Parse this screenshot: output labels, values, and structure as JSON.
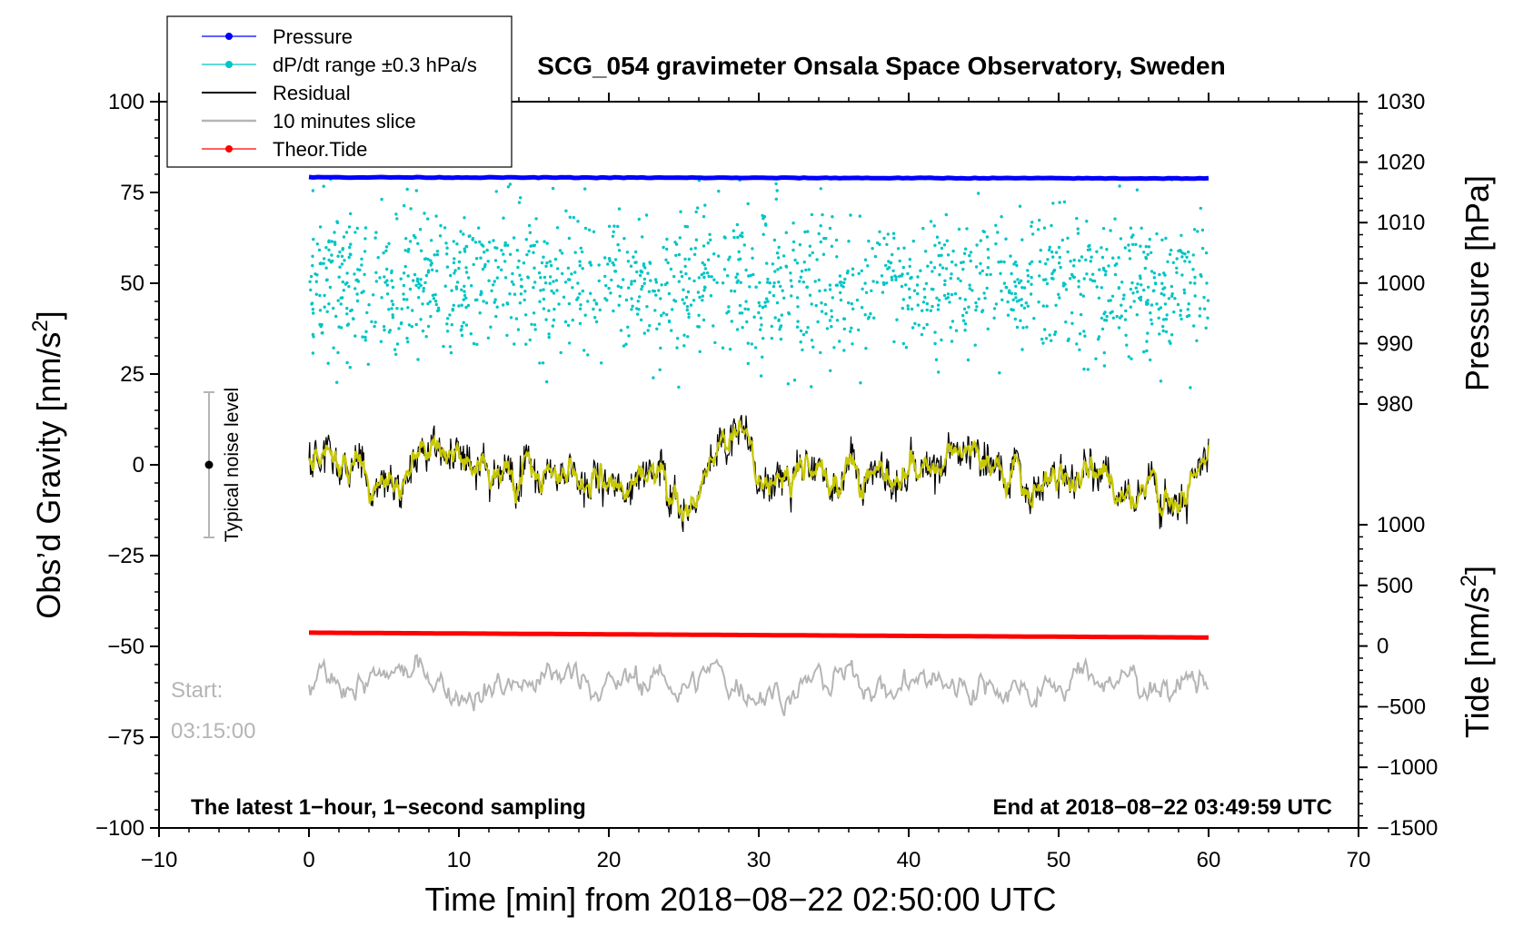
{
  "chart_data": {
    "type": "line",
    "title": "SCG_054 gravimeter Onsala Space Observatory, Sweden",
    "xlabel": "Time [min] from 2018−08−22 02:50:00 UTC",
    "ylabel": "Obs’d Gravity [nm/s",
    "ylabel_sup": "2",
    "ylabel_tail": "]",
    "y2label": "Pressure [hPa]",
    "y3label": "Tide [nm/s",
    "y3label_sup": "2",
    "y3label_tail": "]",
    "xlim": [
      -10,
      70
    ],
    "ylim": [
      -100,
      100
    ],
    "pressure_axis_range": [
      980,
      1030
    ],
    "tide_axis_range": [
      -1500,
      1000
    ],
    "x_ticks": [
      "−10",
      "0",
      "10",
      "20",
      "30",
      "40",
      "50",
      "60",
      "70"
    ],
    "y_ticks": [
      "100",
      "75",
      "50",
      "25",
      "0",
      "−25",
      "−50",
      "−75",
      "−100"
    ],
    "pressure_ticks": [
      "1030",
      "1020",
      "1010",
      "1000",
      "990",
      "980"
    ],
    "tide_ticks": [
      "1000",
      "500",
      "0",
      "−500",
      "−1000",
      "−1500"
    ],
    "series": [
      {
        "name": "Pressure",
        "color": "#0000ff",
        "style": "line+markers",
        "axis": "pressure",
        "x": [
          0,
          60
        ],
        "values": [
          1017.5,
          1017.3
        ]
      },
      {
        "name": "dP/dt range ±0.3 hPa/s",
        "color": "#00c5c5",
        "style": "scatter",
        "axis": "gravity",
        "center": 50,
        "spread": 30
      },
      {
        "name": "Residual",
        "color": "#000000",
        "style": "line",
        "axis": "gravity",
        "amplitude": 15
      },
      {
        "name": "10 minutes slice",
        "color": "#b5b5b5",
        "style": "line",
        "axis": "gravity",
        "center": -60,
        "amplitude": 10
      },
      {
        "name": "Theor.Tide",
        "color": "#ff0000",
        "style": "line+markers",
        "axis": "tide",
        "x": [
          0,
          60
        ],
        "values": [
          110,
          70
        ]
      }
    ],
    "annotations": {
      "bottom_left": "The latest 1−hour, 1−second sampling",
      "bottom_right": "End at 2018−08−22 03:49:59 UTC",
      "start_label": "Start:",
      "start_time": "03:15:00",
      "noise_label": "Typical noise level",
      "noise_range": [
        -20,
        20
      ]
    },
    "legend_position": "top-left",
    "colors": {
      "pressure": "#0000ff",
      "dpdt": "#00c5c5",
      "residual": "#000000",
      "filtered": "#c8c800",
      "slice": "#b5b5b5",
      "tide": "#ff0000"
    }
  }
}
